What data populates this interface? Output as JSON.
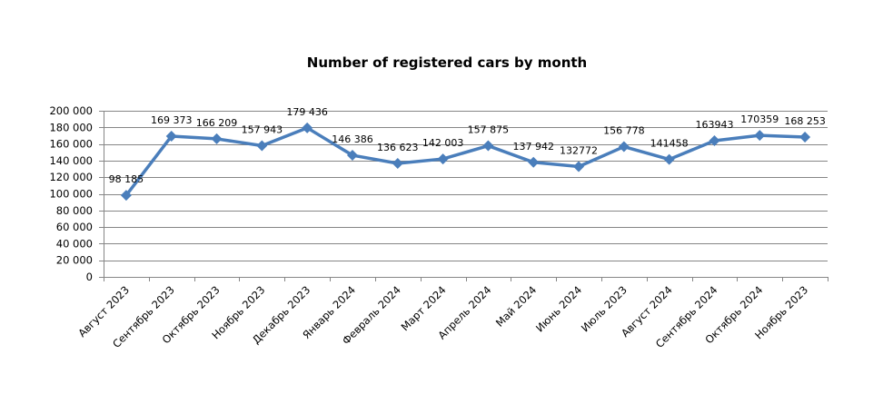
{
  "chart_data": {
    "type": "line",
    "title": "Number of registered cars by month",
    "xlabel": "",
    "ylabel": "",
    "categories": [
      "Август 2023",
      "Сентябрь 2023",
      "Октябрь 2023",
      "Ноябрь 2023",
      "Декабрь 2023",
      "Январь 2024",
      "Февраль 2024",
      "Март 2024",
      "Апрель 2024",
      "Май 2024",
      "Июнь 2024",
      "Июль 2023",
      "Август 2024",
      "Сентябрь 2024",
      "Октябрь 2024",
      "Ноябрь 2023"
    ],
    "series": [
      {
        "values": [
          98185,
          169373,
          166209,
          157943,
          179436,
          146386,
          136623,
          142003,
          157875,
          137942,
          132772,
          156778,
          141458,
          163943,
          170359,
          168253
        ],
        "data_labels": [
          "98 185",
          "169 373",
          "166 209",
          "157 943",
          "179 436",
          "146 386",
          "136 623",
          "142 003",
          "157 875",
          "137 942",
          "132772",
          "156 778",
          "141458",
          "163943",
          "170359",
          "168 253"
        ]
      }
    ],
    "yticks": [
      0,
      20000,
      40000,
      60000,
      80000,
      100000,
      120000,
      140000,
      160000,
      180000,
      200000
    ],
    "ytick_labels": [
      "0",
      "20 000",
      "40 000",
      "60 000",
      "80 000",
      "100 000",
      "120 000",
      "140 000",
      "160 000",
      "180 000",
      "200 000"
    ],
    "ylim": [
      0,
      200000
    ],
    "grid": true,
    "legend": "none",
    "colors": {
      "line": "#4a7ebb",
      "marker": "#4a7ebb",
      "grid": "#868686",
      "axis": "#868686"
    }
  }
}
